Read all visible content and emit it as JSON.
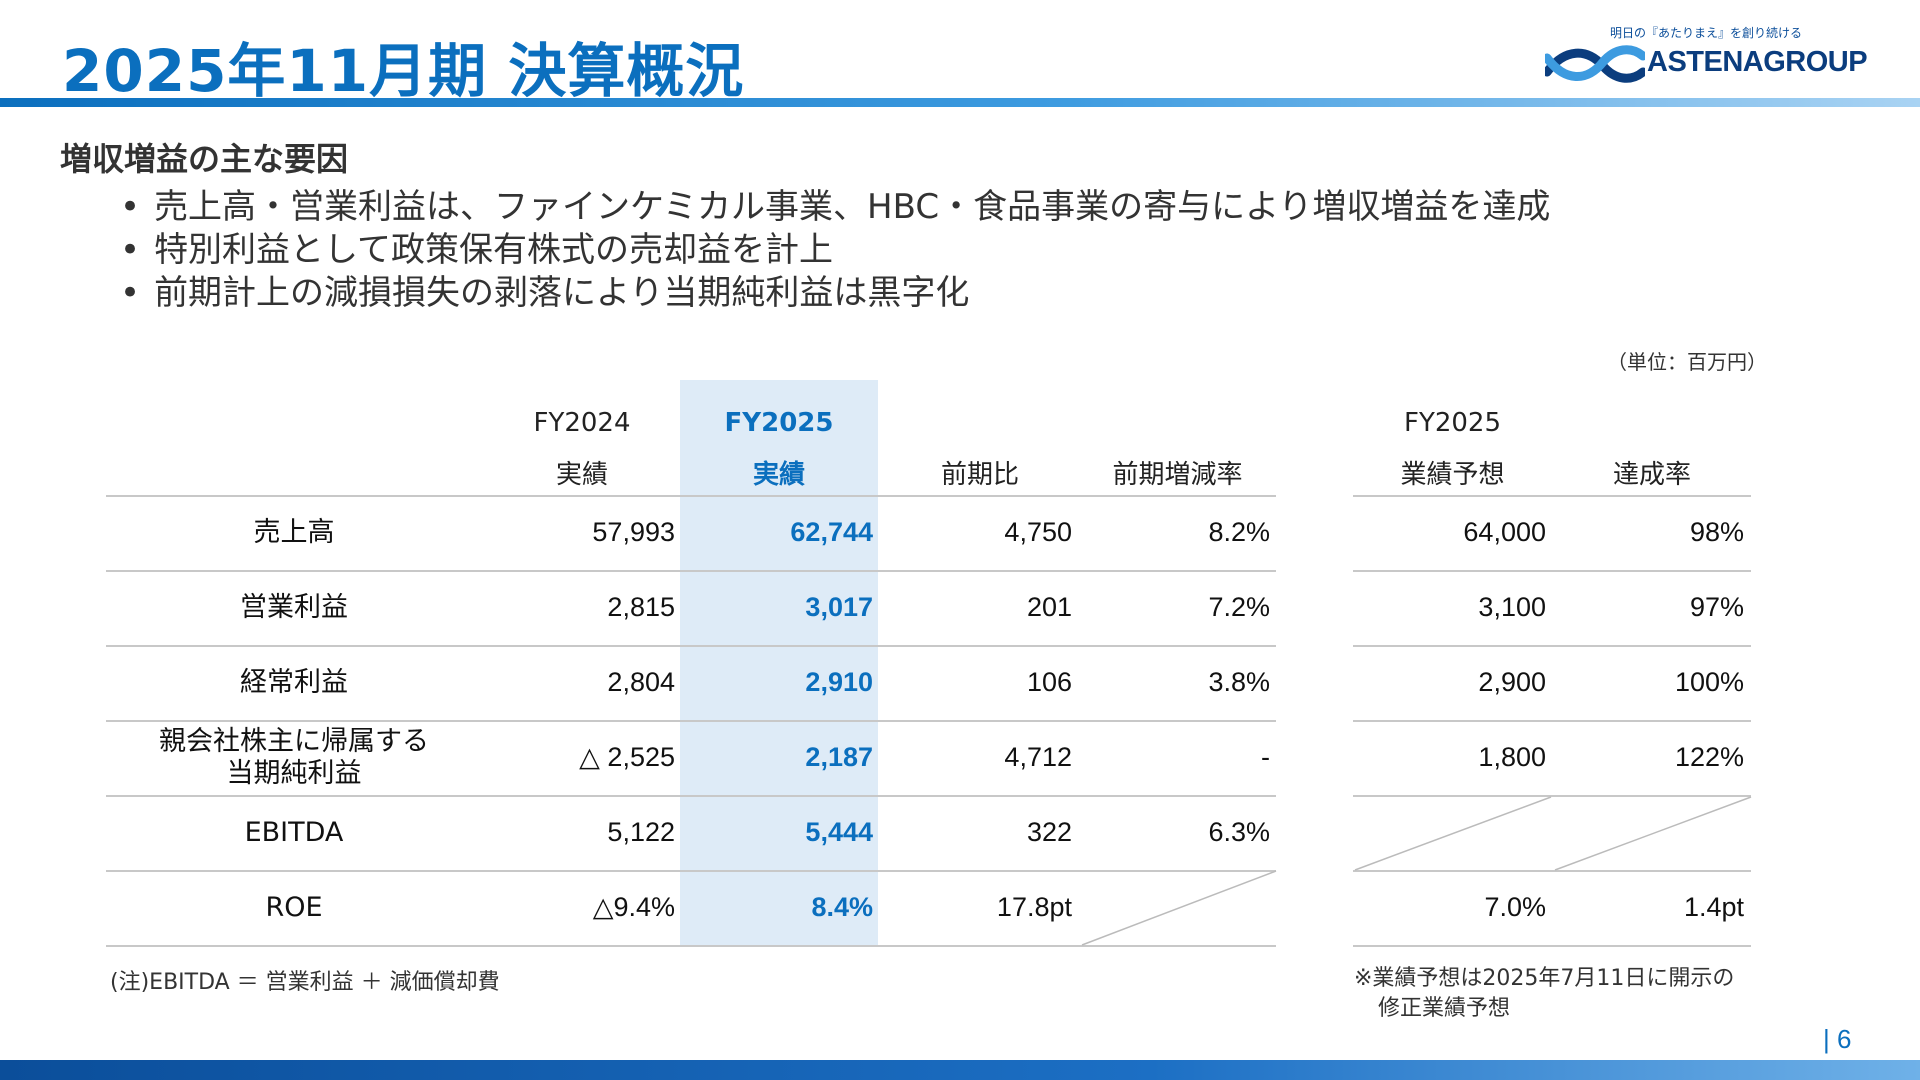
{
  "header": {
    "title": "2025年11月期 決算概況",
    "logo_tagline": "明日の『あたりまえ』を創り続ける",
    "logo_name": "ASTENAGROUP",
    "accent_color": "#0b6fbe"
  },
  "section_heading": "増収増益の主な要因",
  "bullets": [
    "売上高・営業利益は、ファインケミカル事業、HBC・食品事業の寄与により増収増益を達成",
    "特別利益として政策保有株式の売却益を計上",
    "前期計上の減損損失の剥落により当期純利益は黒字化"
  ],
  "unit_label": "（単位：百万円）",
  "table": {
    "headers": {
      "fy2024": [
        "FY2024",
        "実績"
      ],
      "fy2025": [
        "FY2025",
        "実績"
      ],
      "yoy": "前期比",
      "yoy_rate": "前期増減率",
      "forecast": [
        "FY2025",
        "業績予想"
      ],
      "achievement": "達成率"
    },
    "rows": [
      {
        "label": [
          "売上高"
        ],
        "fy2024": "57,993",
        "fy2025": "62,744",
        "yoy": "4,750",
        "yoy_rate": "8.2%",
        "forecast": "64,000",
        "achievement": "98%"
      },
      {
        "label": [
          "営業利益"
        ],
        "fy2024": "2,815",
        "fy2025": "3,017",
        "yoy": "201",
        "yoy_rate": "7.2%",
        "forecast": "3,100",
        "achievement": "97%"
      },
      {
        "label": [
          "経常利益"
        ],
        "fy2024": "2,804",
        "fy2025": "2,910",
        "yoy": "106",
        "yoy_rate": "3.8%",
        "forecast": "2,900",
        "achievement": "100%"
      },
      {
        "label": [
          "親会社株主に帰属する",
          "当期純利益"
        ],
        "fy2024": "△ 2,525",
        "fy2025": "2,187",
        "yoy": "4,712",
        "yoy_rate": "-",
        "forecast": "1,800",
        "achievement": "122%"
      },
      {
        "label": [
          "EBITDA"
        ],
        "fy2024": "5,122",
        "fy2025": "5,444",
        "yoy": "322",
        "yoy_rate": "6.3%",
        "forecast": "",
        "achievement": ""
      },
      {
        "label": [
          "ROE"
        ],
        "fy2024": "△9.4%",
        "fy2025": "8.4%",
        "yoy": "17.8pt",
        "yoy_rate": "",
        "forecast": "7.0%",
        "achievement": "1.4pt"
      }
    ]
  },
  "notes": {
    "left": "(注)EBITDA ＝ 営業利益 ＋ 減価償却費",
    "right_line1": "※業績予想は2025年7月11日に開示の",
    "right_line2": "修正業績予想"
  },
  "page_number": "| 6"
}
